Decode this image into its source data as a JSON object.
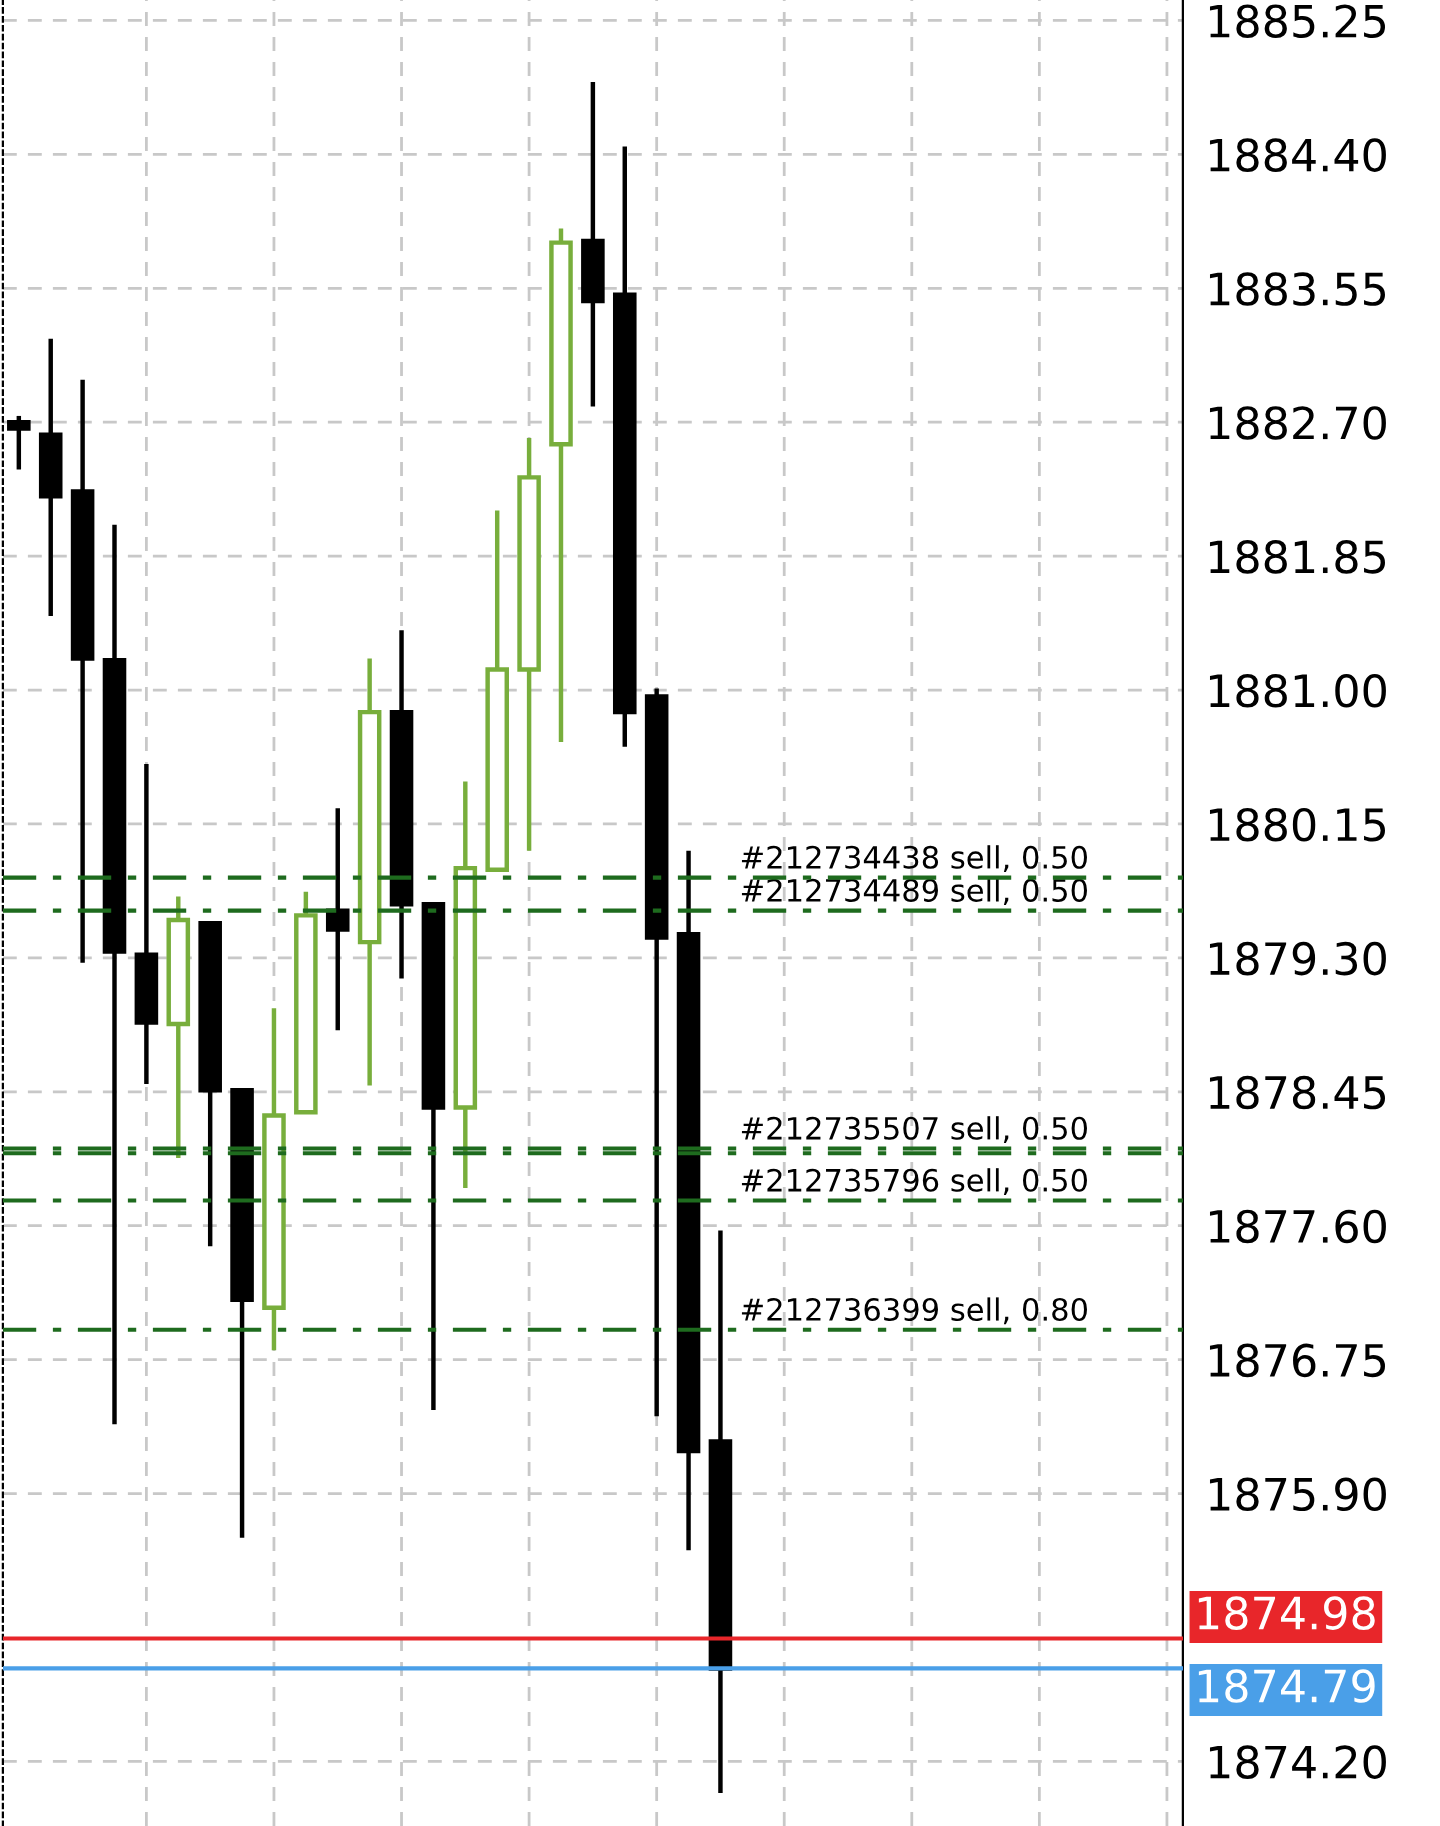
{
  "chart_data": {
    "type": "candlestick",
    "categories": [
      null,
      null,
      null,
      null,
      null,
      null,
      null,
      null,
      null,
      null,
      null,
      null,
      null,
      null,
      null,
      null,
      null,
      null,
      null,
      null,
      null,
      null,
      null,
      null,
      null,
      null,
      null,
      null,
      null,
      null,
      null,
      null,
      null,
      null,
      null,
      null,
      null
    ],
    "ohlc": [
      [
        1882.7,
        1882.74,
        1882.4,
        1882.66
      ],
      [
        1882.62,
        1883.23,
        1881.47,
        1882.23
      ],
      [
        1882.26,
        1882.97,
        1879.27,
        1881.2
      ],
      [
        1881.19,
        1882.05,
        1876.34,
        1879.34
      ],
      [
        1879.32,
        1880.53,
        1878.5,
        1878.89
      ],
      [
        1878.88,
        1879.69,
        1878.03,
        1879.54
      ],
      [
        1879.52,
        1879.52,
        1877.47,
        1878.46
      ],
      [
        1878.46,
        1878.46,
        1875.62,
        1877.13
      ],
      [
        1877.08,
        1878.98,
        1876.81,
        1878.3
      ],
      [
        1878.32,
        1879.72,
        1878.32,
        1879.57
      ],
      [
        1879.6,
        1880.25,
        1878.84,
        1879.48
      ],
      [
        1879.4,
        1881.2,
        1878.49,
        1880.86
      ],
      [
        1880.86,
        1881.38,
        1879.17,
        1879.64
      ],
      [
        1879.64,
        1879.64,
        1876.43,
        1878.35
      ],
      [
        1878.35,
        1880.42,
        1877.84,
        1879.87
      ],
      [
        1879.86,
        1882.14,
        1879.86,
        1881.13
      ],
      [
        1881.13,
        1882.6,
        1879.98,
        1882.35
      ],
      [
        1882.56,
        1883.93,
        1880.67,
        1883.84
      ],
      [
        1883.85,
        1884.86,
        1882.8,
        1883.47
      ],
      [
        1883.51,
        1884.45,
        1880.64,
        1880.86
      ],
      [
        1880.96,
        1881.01,
        1876.39,
        1879.43
      ],
      [
        1879.45,
        1879.98,
        1875.54,
        1876.17
      ],
      [
        1876.23,
        1877.57,
        1874.0,
        1874.79
      ],
      null,
      null,
      null,
      null,
      null,
      null,
      null,
      null,
      null,
      null,
      null,
      null,
      null,
      null
    ],
    "colors": [
      "#000000",
      "#000000",
      "#000000",
      "#000000",
      "#000000",
      "#78ae3c",
      "#000000",
      "#000000",
      "#78ae3c",
      "#78ae3c",
      "#000000",
      "#78ae3c",
      "#000000",
      "#000000",
      "#78ae3c",
      "#78ae3c",
      "#78ae3c",
      "#78ae3c",
      "#000000",
      "#000000",
      "#000000",
      "#000000",
      "#000000",
      null,
      null,
      null,
      null,
      null,
      null,
      null,
      null,
      null,
      null,
      null,
      null,
      null,
      null
    ],
    "ylim": [
      1873.79,
      1885.38
    ],
    "yticks": [
      {
        "value": 1885.25,
        "label": "1885.25"
      },
      {
        "value": 1884.4,
        "label": "1884.40"
      },
      {
        "value": 1883.55,
        "label": "1883.55"
      },
      {
        "value": 1882.7,
        "label": "1882.70"
      },
      {
        "value": 1881.85,
        "label": "1881.85"
      },
      {
        "value": 1881.0,
        "label": "1881.00"
      },
      {
        "value": 1880.15,
        "label": "1880.15"
      },
      {
        "value": 1879.3,
        "label": "1879.30"
      },
      {
        "value": 1878.45,
        "label": "1878.45"
      },
      {
        "value": 1877.6,
        "label": "1877.60"
      },
      {
        "value": 1876.75,
        "label": "1876.75"
      },
      {
        "value": 1875.9,
        "label": "1875.90"
      },
      {
        "value": 1874.2,
        "label": "1874.20"
      }
    ],
    "grid": true,
    "tick_labels": "y",
    "ref_lines": [
      {
        "axis": "y",
        "value": 1879.81,
        "label": "#212734438 sell, 0.50",
        "color": "#1e6b1e",
        "line_style": "dashdot"
      },
      {
        "axis": "y",
        "value": 1879.6,
        "label": "#212734489 sell, 0.50",
        "color": "#1e6b1e",
        "line_style": "dashdot"
      },
      {
        "axis": "y",
        "value": 1878.09,
        "label": "#212735507 sell, 0.50",
        "color": "#1e6b1e",
        "line_style": "dashdot"
      },
      {
        "axis": "y",
        "value": 1878.06,
        "label": null,
        "color": "#1e6b1e",
        "line_style": "dashdot"
      },
      {
        "axis": "y",
        "value": 1877.76,
        "label": "#212735796 sell, 0.50",
        "color": "#1e6b1e",
        "line_style": "dashdot"
      },
      {
        "axis": "y",
        "value": 1876.94,
        "label": "#212736399 sell, 0.80",
        "color": "#1e6b1e",
        "line_style": "dashdot"
      },
      {
        "axis": "y",
        "value": 1874.98,
        "label": "1874.98",
        "color": "#e8262a",
        "line_style": "solid"
      },
      {
        "axis": "y",
        "value": 1874.79,
        "label": "1874.79",
        "color": "#4a9fe8",
        "line_style": "solid"
      }
    ]
  }
}
